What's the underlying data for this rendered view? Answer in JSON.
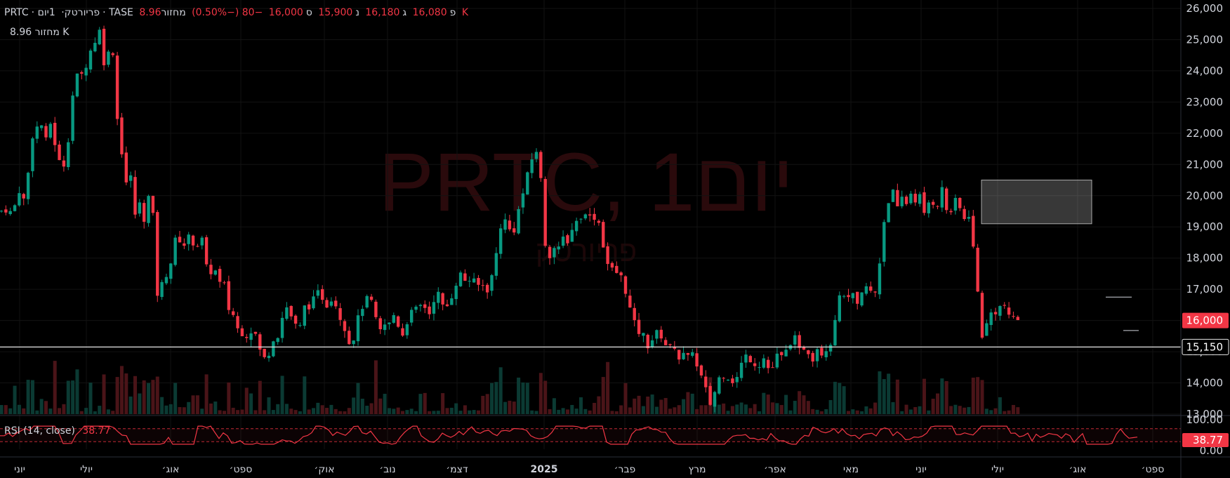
{
  "header": {
    "symbol": "PRTC",
    "name": "פריורטק",
    "interval": "1יום",
    "exchange": "TASE",
    "open_label": "פ",
    "open": "16,080",
    "high_label": "ג",
    "high": "16,180",
    "low_label": "נ",
    "low": "15,900",
    "close_label": "ס",
    "close": "16,000",
    "change": "−80 (−0.50%)",
    "volume_label": "מחזור",
    "volume": "8.96 K"
  },
  "volume_row": {
    "label": "מחזור",
    "value": "8.96 K"
  },
  "watermark": {
    "title": "PRTC, 1יום",
    "subtitle": "פריורטק"
  },
  "colors": {
    "up": "#089981",
    "down": "#f23645",
    "background": "#000000",
    "text": "#d1d4dc",
    "rsi": "#f23645"
  },
  "rsi": {
    "label": "RSI (14, close)",
    "value": "38.77",
    "axis_top": "100.00",
    "axis_bottom": "0.00"
  },
  "price_axis": {
    "current_price": "16,000",
    "line_price": "15,150"
  },
  "chart_data": {
    "type": "candlestick",
    "title": "PRTC, 1יום",
    "y_range": [
      12500,
      26300
    ],
    "y_ticks": [
      "13,000",
      "14,000",
      "15,000",
      "16,000",
      "17,000",
      "18,000",
      "19,000",
      "20,000",
      "21,000",
      "22,000",
      "23,000",
      "24,000",
      "25,000",
      "26,000"
    ],
    "x_tick_labels": [
      "יוני",
      "יולי",
      "אוג׳",
      "ספט׳",
      "אוק׳",
      "נוב׳",
      "דצמ׳",
      "2025",
      "פבר׳",
      "מרץ",
      "אפר׳",
      "מאי",
      "יוני",
      "יולי",
      "אוג׳",
      "ספט׳"
    ],
    "horizontal_line": 15150,
    "rectangle": {
      "from": "יוני",
      "to": "אוג׳",
      "low": 19100,
      "high": 20500
    },
    "path": [
      [
        0,
        19500
      ],
      [
        12,
        19600
      ],
      [
        17,
        19350
      ],
      [
        25,
        20000
      ],
      [
        31,
        20450
      ],
      [
        35,
        19600
      ],
      [
        45,
        21800
      ],
      [
        50,
        22300
      ],
      [
        55,
        22100
      ],
      [
        60,
        22300
      ],
      [
        66,
        21700
      ],
      [
        70,
        22500
      ],
      [
        76,
        21900
      ],
      [
        83,
        21200
      ],
      [
        88,
        20800
      ],
      [
        95,
        21300
      ],
      [
        100,
        22500
      ],
      [
        105,
        23500
      ],
      [
        113,
        24000
      ],
      [
        118,
        23800
      ],
      [
        126,
        24500
      ],
      [
        136,
        25000
      ],
      [
        142,
        25300
      ],
      [
        148,
        24300
      ],
      [
        152,
        24800
      ],
      [
        158,
        24200
      ],
      [
        162,
        24800
      ],
      [
        167,
        22500
      ],
      [
        170,
        21700
      ],
      [
        175,
        21300
      ],
      [
        180,
        20400
      ],
      [
        187,
        20600
      ],
      [
        193,
        19300
      ],
      [
        200,
        19800
      ],
      [
        207,
        19100
      ],
      [
        214,
        20400
      ],
      [
        218,
        19300
      ],
      [
        222,
        16900
      ],
      [
        228,
        16800
      ],
      [
        234,
        17600
      ],
      [
        240,
        17400
      ],
      [
        247,
        18400
      ],
      [
        254,
        18800
      ],
      [
        260,
        18200
      ],
      [
        265,
        18700
      ],
      [
        273,
        18600
      ],
      [
        280,
        18300
      ],
      [
        286,
        18900
      ],
      [
        292,
        17800
      ],
      [
        299,
        17400
      ],
      [
        303,
        17900
      ],
      [
        310,
        17300
      ],
      [
        315,
        17100
      ],
      [
        320,
        17100
      ],
      [
        325,
        16400
      ],
      [
        332,
        16200
      ],
      [
        339,
        15700
      ],
      [
        347,
        15600
      ],
      [
        355,
        15500
      ],
      [
        361,
        15900
      ],
      [
        367,
        15200
      ],
      [
        373,
        14900
      ],
      [
        379,
        14700
      ],
      [
        386,
        15200
      ],
      [
        393,
        15700
      ],
      [
        398,
        15400
      ],
      [
        405,
        16600
      ],
      [
        413,
        16200
      ],
      [
        419,
        16000
      ],
      [
        425,
        15500
      ],
      [
        431,
        16200
      ],
      [
        436,
        16600
      ],
      [
        443,
        16400
      ],
      [
        450,
        16900
      ],
      [
        458,
        16800
      ],
      [
        465,
        16500
      ],
      [
        470,
        16700
      ],
      [
        475,
        16800
      ],
      [
        482,
        16200
      ],
      [
        488,
        16000
      ],
      [
        495,
        15500
      ],
      [
        500,
        15100
      ],
      [
        507,
        15800
      ],
      [
        513,
        16300
      ],
      [
        519,
        16600
      ],
      [
        525,
        16700
      ],
      [
        532,
        16500
      ],
      [
        538,
        15600
      ],
      [
        545,
        15700
      ],
      [
        551,
        16000
      ],
      [
        557,
        15800
      ],
      [
        563,
        16400
      ],
      [
        570,
        15500
      ],
      [
        576,
        15600
      ],
      [
        582,
        16200
      ],
      [
        590,
        16300
      ],
      [
        597,
        16400
      ],
      [
        603,
        16600
      ],
      [
        610,
        16100
      ],
      [
        615,
        16500
      ],
      [
        621,
        16900
      ],
      [
        627,
        16800
      ],
      [
        632,
        16300
      ],
      [
        638,
        16500
      ],
      [
        645,
        16900
      ],
      [
        651,
        17300
      ],
      [
        657,
        17500
      ],
      [
        665,
        17200
      ],
      [
        672,
        17400
      ],
      [
        679,
        17000
      ],
      [
        685,
        17300
      ],
      [
        691,
        16900
      ],
      [
        697,
        17100
      ],
      [
        705,
        17800
      ],
      [
        711,
        18900
      ],
      [
        717,
        19300
      ],
      [
        724,
        19000
      ],
      [
        730,
        18700
      ],
      [
        737,
        19400
      ],
      [
        744,
        20000
      ],
      [
        751,
        20600
      ],
      [
        758,
        21200
      ],
      [
        765,
        21500
      ],
      [
        770,
        20600
      ],
      [
        775,
        19100
      ],
      [
        779,
        17600
      ],
      [
        786,
        18500
      ],
      [
        792,
        18200
      ],
      [
        798,
        18300
      ],
      [
        804,
        18800
      ],
      [
        810,
        18500
      ],
      [
        816,
        19000
      ],
      [
        822,
        19300
      ],
      [
        829,
        19200
      ],
      [
        835,
        19600
      ],
      [
        842,
        19200
      ],
      [
        849,
        19400
      ],
      [
        855,
        19000
      ],
      [
        861,
        18200
      ],
      [
        867,
        17700
      ],
      [
        873,
        17600
      ],
      [
        881,
        17500
      ],
      [
        887,
        17300
      ],
      [
        893,
        16800
      ],
      [
        899,
        16200
      ],
      [
        905,
        15800
      ],
      [
        911,
        15600
      ],
      [
        917,
        15500
      ],
      [
        923,
        15200
      ],
      [
        929,
        15400
      ],
      [
        936,
        15600
      ],
      [
        943,
        15500
      ],
      [
        949,
        15200
      ],
      [
        955,
        15100
      ],
      [
        961,
        15200
      ],
      [
        967,
        14800
      ],
      [
        973,
        14900
      ],
      [
        979,
        14700
      ],
      [
        985,
        15200
      ],
      [
        991,
        14600
      ],
      [
        997,
        14200
      ],
      [
        1003,
        14100
      ],
      [
        1009,
        13200
      ],
      [
        1015,
        13500
      ],
      [
        1022,
        14000
      ],
      [
        1028,
        14400
      ],
      [
        1034,
        14100
      ],
      [
        1040,
        14300
      ],
      [
        1046,
        13900
      ],
      [
        1053,
        14400
      ],
      [
        1059,
        14800
      ],
      [
        1065,
        14900
      ],
      [
        1071,
        14700
      ],
      [
        1078,
        14600
      ],
      [
        1084,
        14600
      ],
      [
        1090,
        14900
      ],
      [
        1096,
        14300
      ],
      [
        1103,
        14600
      ],
      [
        1109,
        15000
      ],
      [
        1116,
        14700
      ],
      [
        1122,
        15200
      ],
      [
        1128,
        15400
      ],
      [
        1134,
        15400
      ],
      [
        1140,
        14900
      ],
      [
        1146,
        15200
      ],
      [
        1152,
        15000
      ],
      [
        1158,
        14800
      ],
      [
        1165,
        15200
      ],
      [
        1172,
        14900
      ],
      [
        1178,
        15200
      ],
      [
        1184,
        15300
      ],
      [
        1190,
        16200
      ],
      [
        1196,
        16700
      ],
      [
        1203,
        16900
      ],
      [
        1209,
        16600
      ],
      [
        1215,
        16800
      ],
      [
        1221,
        16400
      ],
      [
        1227,
        16800
      ],
      [
        1233,
        17100
      ],
      [
        1240,
        16900
      ],
      [
        1247,
        16900
      ],
      [
        1252,
        17700
      ],
      [
        1258,
        18900
      ],
      [
        1262,
        19800
      ],
      [
        1268,
        19900
      ],
      [
        1274,
        20200
      ],
      [
        1280,
        19300
      ],
      [
        1286,
        20100
      ],
      [
        1292,
        19700
      ],
      [
        1299,
        20200
      ],
      [
        1305,
        19800
      ],
      [
        1311,
        20000
      ],
      [
        1317,
        19300
      ],
      [
        1323,
        19800
      ],
      [
        1329,
        19800
      ],
      [
        1335,
        19700
      ],
      [
        1341,
        20300
      ],
      [
        1347,
        19600
      ],
      [
        1353,
        19400
      ],
      [
        1359,
        19800
      ],
      [
        1365,
        19800
      ],
      [
        1371,
        19200
      ],
      [
        1377,
        19300
      ],
      [
        1382,
        19500
      ],
      [
        1386,
        18400
      ],
      [
        1390,
        17300
      ],
      [
        1394,
        16700
      ],
      [
        1398,
        15500
      ],
      [
        1403,
        15700
      ],
      [
        1409,
        16100
      ],
      [
        1415,
        16400
      ],
      [
        1421,
        16200
      ],
      [
        1427,
        16600
      ],
      [
        1433,
        16400
      ],
      [
        1439,
        15900
      ],
      [
        1445,
        16200
      ],
      [
        1452,
        16000
      ]
    ]
  }
}
